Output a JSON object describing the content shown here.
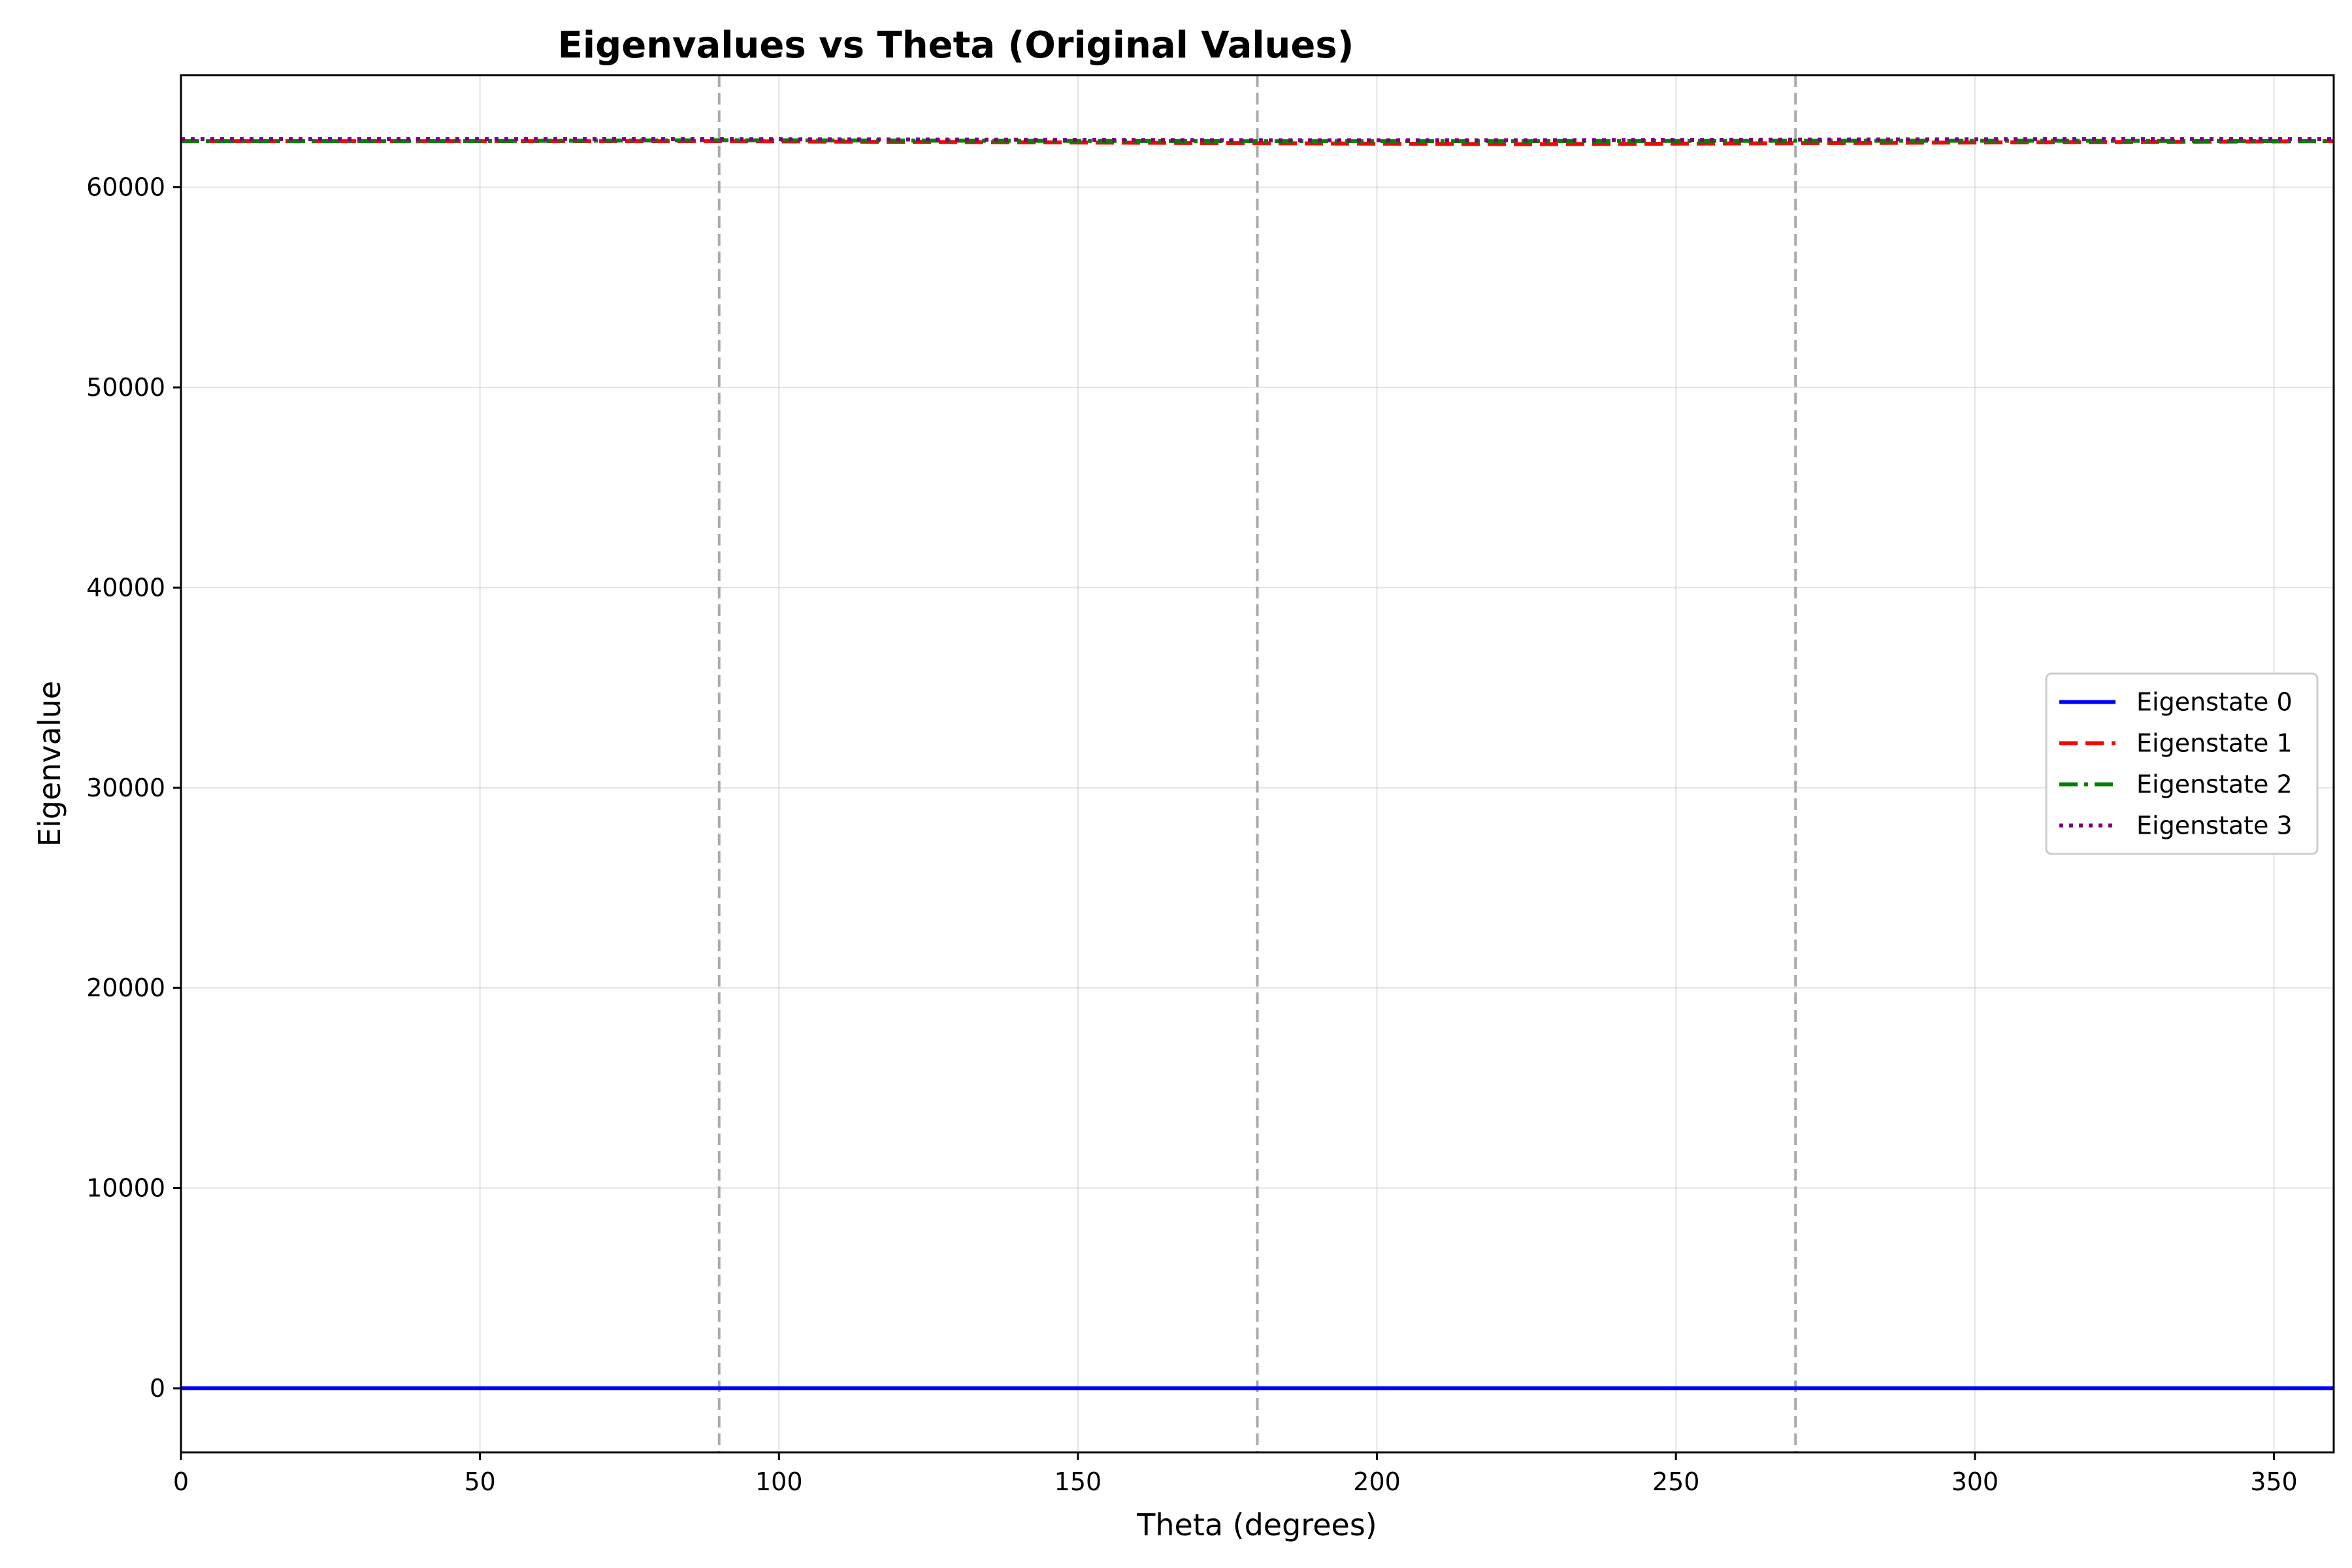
{
  "chart_data": {
    "type": "line",
    "title": "Eigenvalues vs Theta (Original Values)",
    "xlabel": "Theta (degrees)",
    "ylabel": "Eigenvalue",
    "xlim": [
      0,
      360
    ],
    "ylim": [
      -3200,
      65600
    ],
    "x_ticks": [
      0,
      50,
      100,
      150,
      200,
      250,
      300,
      350
    ],
    "y_ticks": [
      0,
      10000,
      20000,
      30000,
      40000,
      50000,
      60000
    ],
    "grid": true,
    "legend_position": "center-right",
    "reference_lines_x": [
      90,
      180,
      270
    ],
    "series": [
      {
        "name": "Eigenstate 0",
        "color": "#0000ff",
        "style": "solid",
        "x": [
          0,
          45,
          90,
          135,
          180,
          225,
          270,
          315,
          360
        ],
        "y": [
          0,
          0,
          0,
          0,
          0,
          0,
          0,
          0,
          0
        ]
      },
      {
        "name": "Eigenstate 1",
        "color": "#ff0000",
        "style": "dashed",
        "x": [
          0,
          45,
          90,
          135,
          180,
          225,
          270,
          315,
          360
        ],
        "y": [
          62300,
          62300,
          62300,
          62250,
          62200,
          62150,
          62200,
          62250,
          62300
        ]
      },
      {
        "name": "Eigenstate 2",
        "color": "#008000",
        "style": "dashdot",
        "x": [
          0,
          45,
          90,
          135,
          180,
          225,
          270,
          315,
          360
        ],
        "y": [
          62300,
          62300,
          62350,
          62320,
          62300,
          62300,
          62320,
          62320,
          62300
        ]
      },
      {
        "name": "Eigenstate 3",
        "color": "#800080",
        "style": "dotted",
        "x": [
          0,
          45,
          90,
          135,
          180,
          225,
          270,
          315,
          360
        ],
        "y": [
          62400,
          62400,
          62400,
          62380,
          62350,
          62350,
          62380,
          62400,
          62400
        ]
      }
    ]
  }
}
